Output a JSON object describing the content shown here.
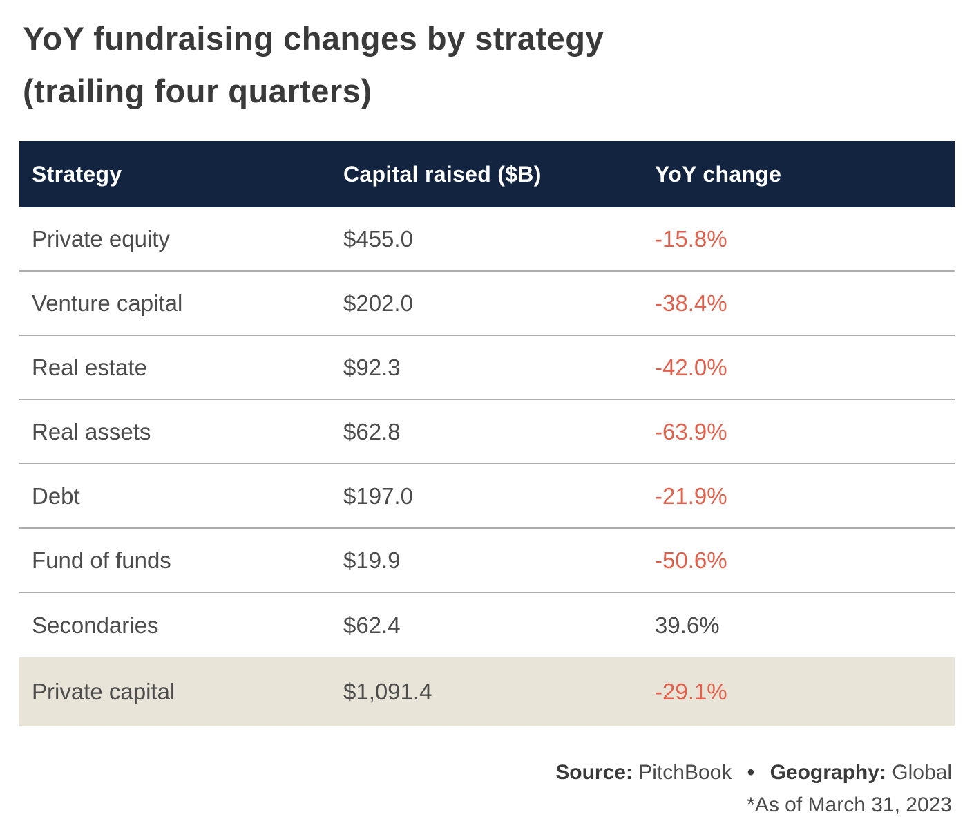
{
  "title": {
    "line1": "YoY fundraising changes by strategy",
    "line2": "(trailing four quarters)"
  },
  "table": {
    "columns": [
      "Strategy",
      "Capital raised ($B)",
      "YoY change"
    ],
    "rows": [
      {
        "strategy": "Private equity",
        "capital": "$455.0",
        "yoy": "-15.8%",
        "negative": true,
        "highlight": false
      },
      {
        "strategy": "Venture capital",
        "capital": "$202.0",
        "yoy": "-38.4%",
        "negative": true,
        "highlight": false
      },
      {
        "strategy": "Real estate",
        "capital": "$92.3",
        "yoy": "-42.0%",
        "negative": true,
        "highlight": false
      },
      {
        "strategy": "Real assets",
        "capital": "$62.8",
        "yoy": "-63.9%",
        "negative": true,
        "highlight": false
      },
      {
        "strategy": "Debt",
        "capital": "$197.0",
        "yoy": "-21.9%",
        "negative": true,
        "highlight": false
      },
      {
        "strategy": "Fund of funds",
        "capital": "$19.9",
        "yoy": "-50.6%",
        "negative": true,
        "highlight": false
      },
      {
        "strategy": "Secondaries",
        "capital": "$62.4",
        "yoy": "39.6%",
        "negative": false,
        "highlight": false
      },
      {
        "strategy": "Private capital",
        "capital": "$1,091.4",
        "yoy": "-29.1%",
        "negative": true,
        "highlight": true
      }
    ]
  },
  "footer": {
    "source_label": "Source:",
    "source_value": "PitchBook",
    "separator": "•",
    "geography_label": "Geography:",
    "geography_value": "Global",
    "as_of": "*As of March 31, 2023"
  },
  "colors": {
    "header_background": "#132440",
    "header_text": "#ffffff",
    "body_text": "#4c4c4c",
    "negative_value": "#e2604b",
    "highlight_row_background": "#e9e4d8",
    "divider": "#adadad",
    "title_text": "#3b3a3a"
  },
  "chart_data": {
    "type": "table",
    "title": "YoY fundraising changes by strategy (trailing four quarters)",
    "columns": [
      "Strategy",
      "Capital raised ($B)",
      "YoY change"
    ],
    "rows": [
      [
        "Private equity",
        455.0,
        -15.8
      ],
      [
        "Venture capital",
        202.0,
        -38.4
      ],
      [
        "Real estate",
        92.3,
        -42.0
      ],
      [
        "Real assets",
        62.8,
        -63.9
      ],
      [
        "Debt",
        197.0,
        -21.9
      ],
      [
        "Fund of funds",
        19.9,
        -50.6
      ],
      [
        "Secondaries",
        62.4,
        39.6
      ],
      [
        "Private capital",
        1091.4,
        -29.1
      ]
    ],
    "units": {
      "capital_raised": "billions USD",
      "yoy_change": "percent"
    },
    "notes": "Negative YoY change values shown in orange-red; Private capital summary row highlighted beige",
    "source": "PitchBook",
    "geography": "Global",
    "as_of": "March 31, 2023"
  }
}
